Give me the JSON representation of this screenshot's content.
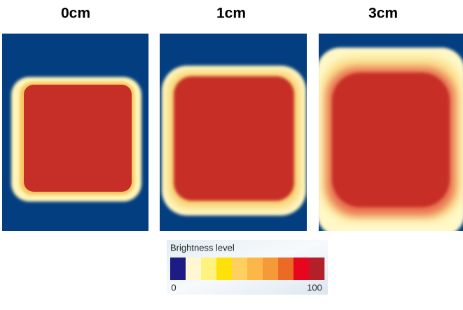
{
  "panels": [
    {
      "title": "0cm"
    },
    {
      "title": "1cm"
    },
    {
      "title": "3cm"
    }
  ],
  "legend": {
    "title": "Brightness level",
    "min_label": "0",
    "max_label": "100",
    "colors": [
      "#1c1c84",
      "#fff8d2",
      "#fff27e",
      "#ffe10a",
      "#ffd060",
      "#fbb848",
      "#f49a38",
      "#ea6a26",
      "#e8061e",
      "#b4202a"
    ]
  }
}
